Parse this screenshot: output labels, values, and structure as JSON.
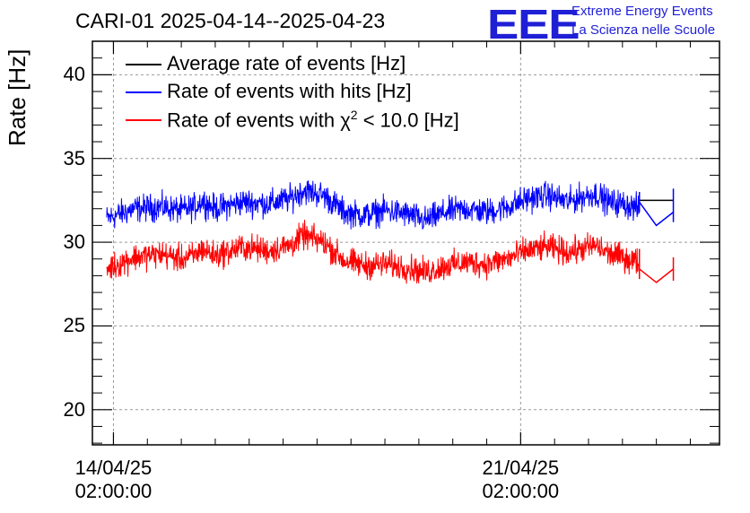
{
  "chart_data": {
    "type": "line",
    "title": "CARI-01 2025-04-14--2025-04-23",
    "ylabel": "Rate [Hz]",
    "xlabel": "",
    "ylim": [
      17.9,
      42.0
    ],
    "xlim_days": [
      -0.31,
      8.93
    ],
    "grid": true,
    "yticks": [
      {
        "value": 20,
        "label": "20"
      },
      {
        "value": 25,
        "label": "25"
      },
      {
        "value": 30,
        "label": "30"
      },
      {
        "value": 35,
        "label": "35"
      },
      {
        "value": 40,
        "label": "40"
      }
    ],
    "xticks": [
      {
        "day": 0,
        "line1": "14/04/25",
        "line2": "02:00:00"
      },
      {
        "day": 6,
        "line1": "21/04/25",
        "line2": "02:00:00"
      }
    ],
    "legend": {
      "position": "top-left",
      "entries": [
        {
          "series": "average",
          "label": "Average rate of events [Hz]",
          "color": "#000000"
        },
        {
          "series": "hits",
          "label": "Rate of events with hits [Hz]",
          "color": "#0000ff"
        },
        {
          "series": "chi2",
          "label_prefix": "Rate of events with ",
          "label_chi": "χ",
          "label_sup": "2",
          "label_suffix": " < 10.0 [Hz]",
          "color": "#ff0000"
        }
      ]
    },
    "series": [
      {
        "name": "Average rate of events [Hz]",
        "color": "#000000",
        "points": [
          [
            7.75,
            32.5
          ],
          [
            8.25,
            32.5
          ]
        ]
      },
      {
        "name": "Rate of events with hits [Hz]",
        "color": "#0000ff",
        "noise_band": 1.2,
        "x_days": [
          -0.1,
          0.3,
          0.7,
          1.0,
          1.2,
          1.3,
          1.5,
          1.9,
          2.3,
          2.6,
          2.8,
          3.1,
          3.4,
          3.7,
          4.0,
          4.3,
          4.6,
          4.9,
          5.2,
          5.5,
          5.8,
          6.1,
          6.4,
          6.7,
          6.9,
          7.1,
          7.3,
          7.5,
          7.75
        ],
        "values": [
          31.4,
          32.0,
          32.1,
          31.9,
          32.1,
          32.5,
          32.0,
          32.4,
          32.3,
          32.6,
          33.1,
          32.8,
          31.8,
          31.6,
          31.9,
          31.7,
          31.3,
          31.8,
          32.0,
          31.8,
          32.1,
          32.6,
          32.8,
          32.4,
          32.7,
          32.9,
          32.4,
          32.3,
          32.0
        ],
        "tail_points": [
          [
            7.75,
            32.4
          ],
          [
            8.0,
            31.0
          ],
          [
            8.25,
            31.8
          ]
        ],
        "tail_errors": [
          [
            8.25,
            31.2,
            33.2
          ],
          [
            7.75,
            31.8,
            33.0
          ]
        ]
      },
      {
        "name": "Rate of events with χ² < 10.0 [Hz]",
        "color": "#ff0000",
        "noise_band": 1.2,
        "x_days": [
          -0.1,
          0.3,
          0.7,
          1.0,
          1.2,
          1.3,
          1.5,
          1.9,
          2.3,
          2.6,
          2.8,
          3.1,
          3.4,
          3.7,
          4.0,
          4.3,
          4.6,
          4.9,
          5.2,
          5.5,
          5.8,
          6.1,
          6.4,
          6.7,
          6.9,
          7.1,
          7.3,
          7.5,
          7.75
        ],
        "values": [
          28.4,
          29.1,
          29.3,
          29.0,
          29.2,
          29.6,
          29.2,
          29.7,
          29.5,
          29.8,
          30.4,
          30.0,
          28.9,
          28.6,
          28.7,
          28.5,
          28.2,
          28.6,
          28.8,
          28.7,
          29.0,
          29.5,
          29.7,
          29.4,
          29.6,
          29.8,
          29.3,
          29.1,
          28.8
        ],
        "tail_points": [
          [
            7.75,
            28.4
          ],
          [
            8.0,
            27.6
          ],
          [
            8.25,
            28.4
          ]
        ],
        "tail_errors": [
          [
            8.25,
            27.7,
            29.1
          ],
          [
            7.75,
            27.8,
            29.6
          ]
        ]
      }
    ]
  },
  "logo": {
    "mark": "EEE",
    "line1": "Extreme Energy Events",
    "line2": "La Scienza nelle Scuole",
    "color": "#1f1fd6"
  }
}
